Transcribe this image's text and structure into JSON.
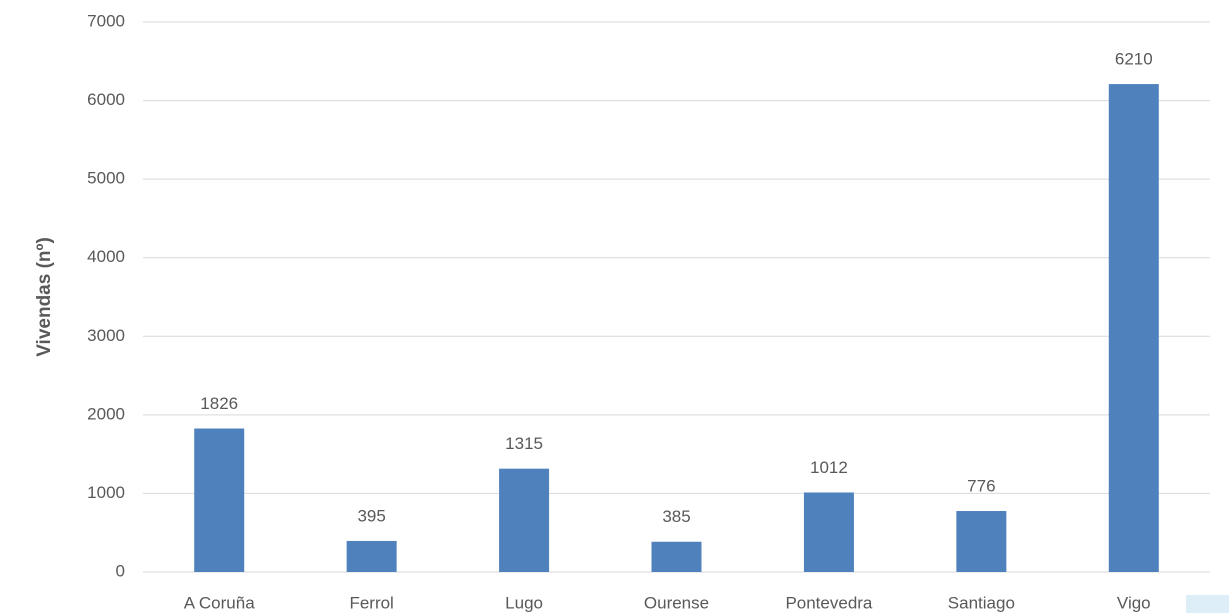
{
  "chart_data": {
    "type": "bar",
    "y_label": "Vivendas (nº)",
    "categories": [
      "A Coruña",
      "Ferrol",
      "Lugo",
      "Ourense",
      "Pontevedra",
      "Santiago",
      "Vigo"
    ],
    "values": [
      1826,
      395,
      1315,
      385,
      1012,
      776,
      6210
    ],
    "color": "#4f81bd",
    "ylim": [
      0,
      7000
    ],
    "yticks": [
      0,
      1000,
      2000,
      3000,
      4000,
      5000,
      6000,
      7000
    ],
    "grid": true
  }
}
